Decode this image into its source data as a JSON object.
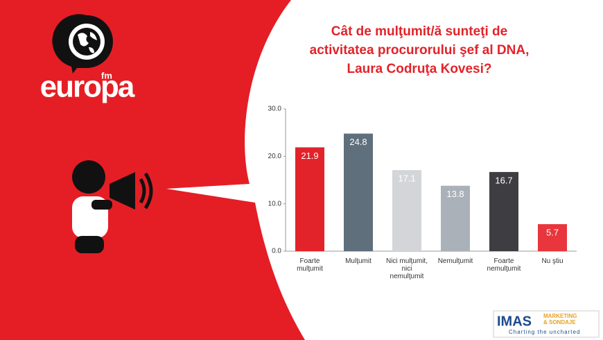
{
  "brand": {
    "name": "europa",
    "suffix": "fm"
  },
  "sponsor": {
    "name": "IMAS",
    "tagline_top": "MARKETING",
    "tagline_bottom": "& SONDAJE",
    "motto": "Charting the uncharted"
  },
  "chart_data": {
    "type": "bar",
    "title": "Cât de mulţumit/ă sunteţi de activitatea procurorului şef al DNA, Laura Codruţa Kovesi?",
    "categories": [
      "Foarte\nmulţumit",
      "Mulţumit",
      "Nici mulţumit,\nnici\nnemulţumit",
      "Nemulţumit",
      "Foarte\nnemulţumit",
      "Nu ştiu"
    ],
    "values": [
      21.9,
      24.8,
      17.1,
      13.8,
      16.7,
      5.7
    ],
    "colors": [
      "#e2232a",
      "#5f6f7c",
      "#d3d5d9",
      "#aab1b9",
      "#3e3e42",
      "#e8363c"
    ],
    "label_colors": [
      "#ffffff",
      "#ffffff",
      "#ffffff",
      "#ffffff",
      "#ffffff",
      "#ffffff"
    ],
    "ylim": [
      0,
      30
    ],
    "yticks": [
      {
        "value": 0,
        "label": "0.0"
      },
      {
        "value": 10,
        "label": "10.0"
      },
      {
        "value": 20,
        "label": "20.0"
      },
      {
        "value": 30,
        "label": "30.0"
      }
    ]
  }
}
